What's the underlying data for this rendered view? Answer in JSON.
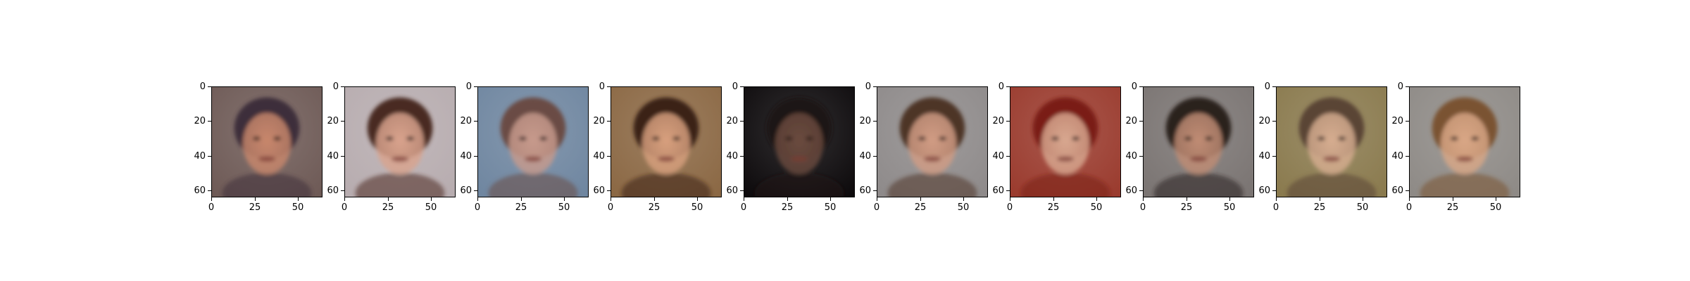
{
  "y_ticks": [
    "0",
    "20",
    "40",
    "60"
  ],
  "x_ticks": [
    "0",
    "25",
    "50"
  ],
  "panels": [
    {
      "subject": "generated-face-short-dark-hair-man",
      "bg": "#6e5a56",
      "skin": "#c8876c",
      "hair": "#3e2f3a"
    },
    {
      "subject": "generated-face-smiling-woman-brown-hair",
      "bg": "#b7acaf",
      "skin": "#d9a38d",
      "hair": "#4a2b22"
    },
    {
      "subject": "generated-face-noisy-woman-colorful-background",
      "bg": "#6f86a0",
      "skin": "#c79a8c",
      "hair": "#6a4b45"
    },
    {
      "subject": "generated-face-smiling-woman-tan-background",
      "bg": "#8b6844",
      "skin": "#d8a07e",
      "hair": "#3b2218"
    },
    {
      "subject": "generated-face-dark-image",
      "bg": "#0d0a0c",
      "skin": "#6a4a3e",
      "hair": "#1e1513"
    },
    {
      "subject": "generated-face-woman-brown-wavy-hair",
      "bg": "#8e8a8a",
      "skin": "#d19c84",
      "hair": "#4e3426"
    },
    {
      "subject": "generated-face-man-red-background",
      "bg": "#9a3b2e",
      "skin": "#d8a890",
      "hair": "#7a1c12"
    },
    {
      "subject": "generated-face-man-dark-hair-gray-background",
      "bg": "#7a7472",
      "skin": "#c08c74",
      "hair": "#2a201e"
    },
    {
      "subject": "generated-face-smiling-man-olive-background",
      "bg": "#8a7a4e",
      "skin": "#d6ad90",
      "hair": "#5a4534"
    },
    {
      "subject": "generated-face-smiling-woman-blonde-hair",
      "bg": "#8e8a86",
      "skin": "#d9a786",
      "hair": "#7a5232"
    }
  ]
}
